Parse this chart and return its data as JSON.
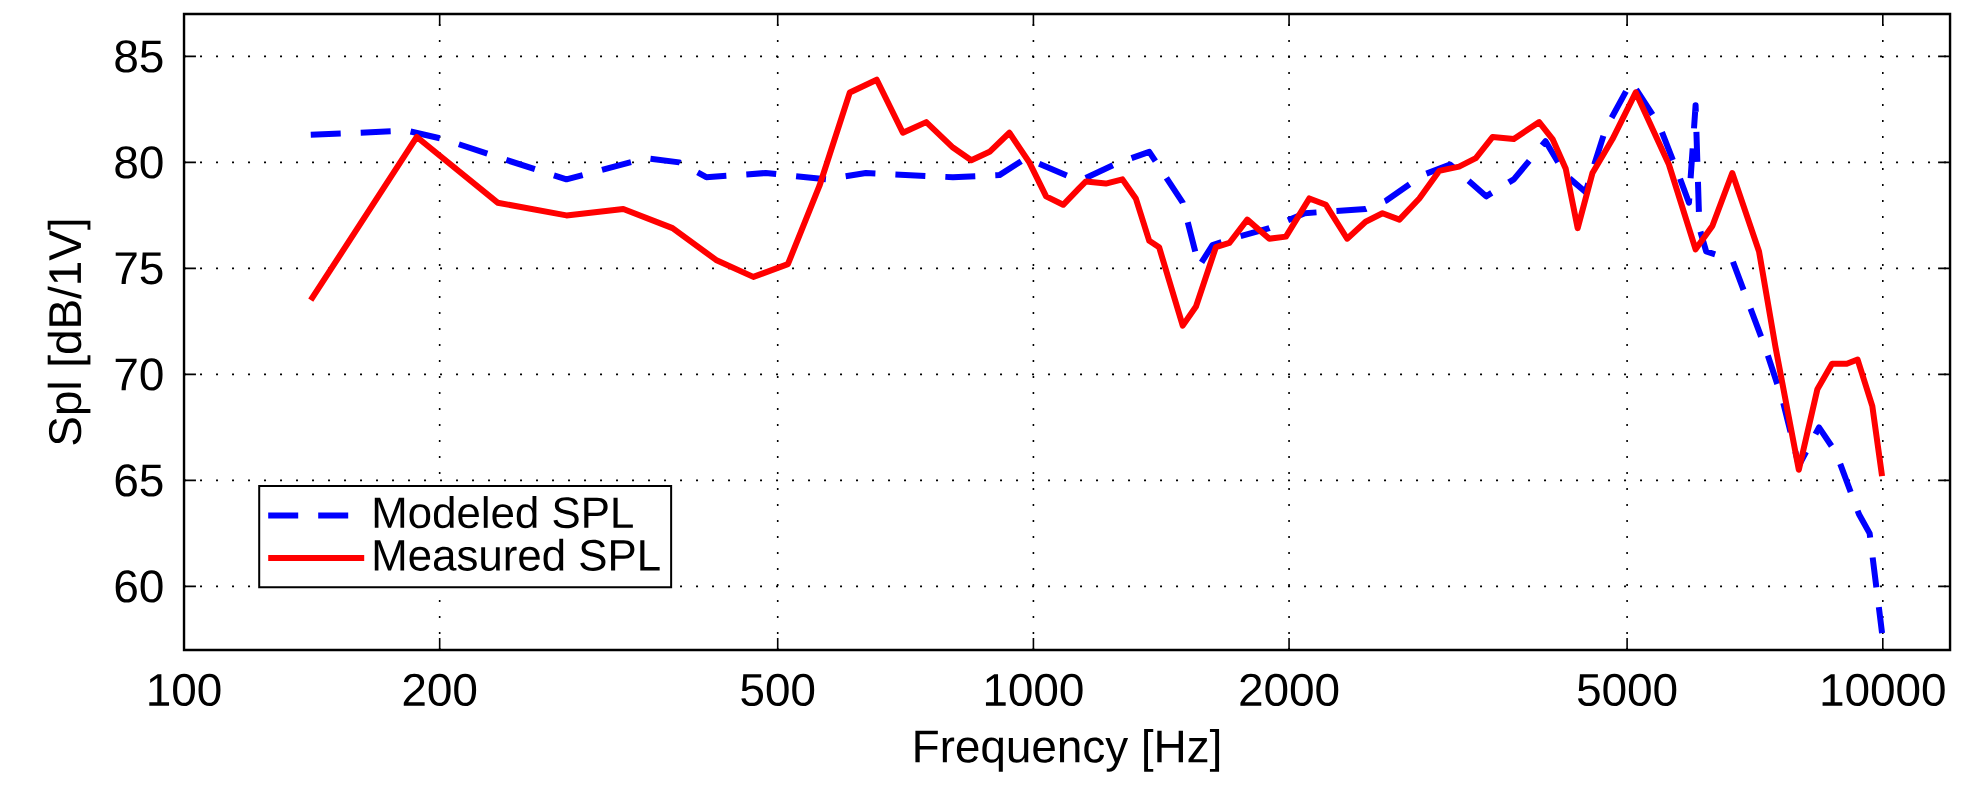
{
  "chart_data": {
    "type": "line",
    "xlabel": "Frequency [Hz]",
    "ylabel": "Spl [dB/1V]",
    "log": "x",
    "xlim": [
      100,
      12000
    ],
    "ylim": [
      57,
      87
    ],
    "xticks": [
      100,
      200,
      500,
      1000,
      2000,
      5000,
      10000
    ],
    "yticks": [
      60,
      65,
      70,
      75,
      80,
      85
    ],
    "grid": true,
    "legend": "bottom left",
    "marker": "none",
    "series": [
      {
        "name": "Modeled SPL",
        "color": "#0000ff",
        "line_style": "dashed",
        "x": [
          141,
          183,
          202,
          236,
          282,
          350,
          383,
          412,
          484,
          570,
          635,
          804,
          912,
          980,
          1122,
          1143,
          1262,
          1369,
          1499,
          1567,
          1625,
          1745,
          1896,
          2087,
          2249,
          2461,
          2603,
          2872,
          3094,
          3412,
          3678,
          4008,
          4234,
          4467,
          4719,
          5056,
          5450,
          5751,
          5913,
          6020,
          6083,
          6195,
          6650,
          7281,
          7621,
          7965,
          8412,
          8812,
          9375,
          9650,
          9980
        ],
        "values": [
          81.3,
          81.5,
          81.1,
          80.2,
          79.2,
          80.2,
          80.0,
          79.3,
          79.5,
          79.2,
          79.5,
          79.3,
          79.4,
          80.2,
          79.2,
          79.2,
          80.0,
          80.5,
          78.1,
          75.1,
          76.1,
          76.5,
          76.9,
          77.6,
          77.7,
          77.8,
          78.2,
          79.4,
          79.9,
          78.4,
          79.2,
          81.0,
          79.4,
          78.6,
          81.6,
          83.8,
          81.8,
          79.4,
          78.1,
          82.7,
          76.9,
          75.8,
          75.4,
          71.2,
          68.8,
          65.7,
          67.5,
          66.3,
          63.4,
          62.5,
          57.8
        ]
      },
      {
        "name": "Measured SPL",
        "color": "#ff0000",
        "line_style": "solid",
        "x": [
          141,
          188,
          234,
          282,
          329,
          376,
          423,
          468,
          514,
          560,
          608,
          654,
          702,
          748,
          804,
          845,
          888,
          937,
          989,
          1035,
          1084,
          1133,
          1153,
          1217,
          1273,
          1320,
          1369,
          1406,
          1499,
          1554,
          1640,
          1701,
          1786,
          1896,
          1983,
          2113,
          2210,
          2341,
          2461,
          2576,
          2697,
          2847,
          3004,
          3171,
          3318,
          3473,
          3678,
          3837,
          3940,
          4085,
          4234,
          4373,
          4552,
          4806,
          5119,
          5600,
          6020,
          6300,
          6650,
          7150,
          7475,
          7965,
          8375,
          8715,
          9070,
          9340,
          9720,
          9980
        ],
        "values": [
          73.5,
          81.2,
          78.1,
          77.5,
          77.8,
          76.9,
          75.4,
          74.6,
          75.2,
          78.9,
          83.3,
          83.9,
          81.4,
          81.9,
          80.7,
          80.1,
          80.5,
          81.4,
          80.0,
          78.4,
          78.0,
          78.8,
          79.1,
          79.0,
          79.2,
          78.3,
          76.3,
          76.0,
          72.3,
          73.2,
          76.0,
          76.2,
          77.3,
          76.4,
          76.5,
          78.3,
          78.0,
          76.4,
          77.2,
          77.6,
          77.3,
          78.3,
          79.6,
          79.8,
          80.2,
          81.2,
          81.1,
          81.6,
          81.9,
          81.1,
          79.7,
          76.9,
          79.5,
          81.1,
          83.3,
          79.9,
          75.9,
          77.0,
          79.5,
          75.8,
          71.3,
          65.5,
          69.3,
          70.5,
          70.5,
          70.7,
          68.5,
          65.2
        ]
      }
    ]
  }
}
